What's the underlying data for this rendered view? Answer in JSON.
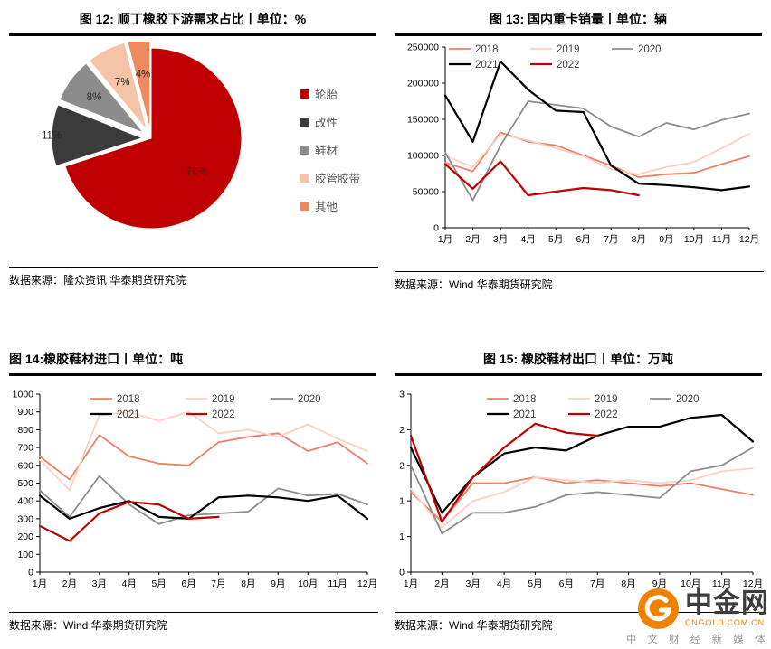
{
  "sources": {
    "fig12": "数据来源：隆众资讯 华泰期货研究院",
    "fig13": "数据来源：Wind 华泰期货研究院",
    "fig14": "数据来源：Wind 华泰期货研究院",
    "fig15": "数据来源：Wind 华泰期货研究院"
  },
  "watermark": {
    "brand": "中金网",
    "domain": "CNGOLD.COM.CN",
    "tagline": "中 文 财 经 新 媒 体",
    "brand_color": "#3c3c3c",
    "accent_color": "#ef8200"
  },
  "chart_data": [
    {
      "type": "pie",
      "title": "图 12: 顺丁橡胶下游需求占比丨单位：%",
      "labels": [
        "轮胎",
        "改性",
        "鞋材",
        "胶管胶带",
        "其他"
      ],
      "values": [
        70,
        11,
        8,
        7,
        4
      ],
      "data_labels": [
        "70%",
        "11%",
        "8%",
        "7%",
        "4%"
      ],
      "colors": [
        "#c00000",
        "#3b3b3b",
        "#8c8c8c",
        "#f5c3a8",
        "#ef8a5f"
      ],
      "legend_position": "right",
      "start_angle": 0,
      "direction": "clockwise"
    },
    {
      "type": "line",
      "title": "图 13: 国内重卡销量丨单位：辆",
      "categories": [
        "1月",
        "2月",
        "3月",
        "4月",
        "5月",
        "6月",
        "7月",
        "8月",
        "9月",
        "10月",
        "11月",
        "12月"
      ],
      "ylim": [
        0,
        250000
      ],
      "yticks": [
        0,
        50000,
        100000,
        150000,
        200000,
        250000
      ],
      "legend_position": "top",
      "series": [
        {
          "name": "2018",
          "color": "#ee8066",
          "values": [
            90000,
            78000,
            132000,
            119000,
            114000,
            100000,
            86000,
            70000,
            74000,
            76000,
            88000,
            99000
          ]
        },
        {
          "name": "2019",
          "color": "#fad1c0",
          "values": [
            100000,
            84000,
            129000,
            121000,
            110000,
            99000,
            81000,
            74000,
            84000,
            91000,
            110000,
            130000
          ]
        },
        {
          "name": "2020",
          "color": "#8c8c8c",
          "values": [
            104000,
            38000,
            114000,
            175000,
            170000,
            165000,
            140000,
            126000,
            145000,
            136000,
            149000,
            158000
          ]
        },
        {
          "name": "2021",
          "color": "#000000",
          "values": [
            183000,
            119000,
            230000,
            191000,
            162000,
            160000,
            86000,
            61000,
            59000,
            56000,
            52000,
            57000
          ]
        },
        {
          "name": "2022",
          "color": "#c00000",
          "values": [
            88000,
            54000,
            92000,
            45000,
            50000,
            55000,
            52000,
            45000,
            null,
            null,
            null,
            null
          ]
        }
      ]
    },
    {
      "type": "line",
      "title": "图 14:橡胶鞋材进口丨单位：吨",
      "categories": [
        "1月",
        "2月",
        "3月",
        "4月",
        "5月",
        "6月",
        "7月",
        "8月",
        "9月",
        "10月",
        "11月",
        "12月"
      ],
      "ylim": [
        0,
        1000
      ],
      "yticks": [
        0,
        100,
        200,
        300,
        400,
        500,
        600,
        700,
        800,
        900,
        1000
      ],
      "legend_position": "top",
      "series": [
        {
          "name": "2018",
          "color": "#ee8066",
          "values": [
            650,
            520,
            770,
            650,
            610,
            600,
            730,
            760,
            780,
            680,
            730,
            610
          ]
        },
        {
          "name": "2019",
          "color": "#fad1c0",
          "values": [
            630,
            460,
            880,
            900,
            850,
            900,
            780,
            800,
            760,
            830,
            750,
            680
          ]
        },
        {
          "name": "2020",
          "color": "#8c8c8c",
          "values": [
            460,
            310,
            540,
            380,
            270,
            320,
            330,
            340,
            470,
            430,
            440,
            380
          ]
        },
        {
          "name": "2021",
          "color": "#000000",
          "values": [
            430,
            300,
            360,
            400,
            310,
            300,
            420,
            430,
            420,
            400,
            430,
            300
          ]
        },
        {
          "name": "2022",
          "color": "#c00000",
          "values": [
            260,
            175,
            330,
            395,
            380,
            300,
            310,
            null,
            null,
            null,
            null,
            null
          ]
        }
      ]
    },
    {
      "type": "line",
      "title": "图 15: 橡胶鞋材出口丨单位：万吨",
      "categories": [
        "1月",
        "2月",
        "3月",
        "4月",
        "5月",
        "6月",
        "7月",
        "8月",
        "9月",
        "10月",
        "11月",
        "12月"
      ],
      "ylim": [
        0,
        3
      ],
      "yticks": [
        0,
        0.6,
        1.2,
        1.8,
        2.4,
        3
      ],
      "ytick_labels": [
        "0",
        "1",
        "1",
        "2",
        "2",
        "3"
      ],
      "legend_position": "top",
      "series": [
        {
          "name": "2018",
          "color": "#ee8066",
          "values": [
            1.35,
            0.85,
            1.5,
            1.5,
            1.6,
            1.5,
            1.55,
            1.5,
            1.45,
            1.5,
            1.4,
            1.3
          ]
        },
        {
          "name": "2019",
          "color": "#fad1c0",
          "values": [
            1.4,
            0.75,
            1.2,
            1.35,
            1.6,
            1.55,
            1.5,
            1.55,
            1.5,
            1.55,
            1.7,
            1.75
          ]
        },
        {
          "name": "2020",
          "color": "#8c8c8c",
          "values": [
            1.8,
            0.65,
            1.0,
            1.0,
            1.1,
            1.3,
            1.35,
            1.3,
            1.25,
            1.7,
            1.8,
            2.1
          ]
        },
        {
          "name": "2021",
          "color": "#000000",
          "values": [
            2.1,
            1.0,
            1.6,
            2.0,
            2.1,
            2.05,
            2.3,
            2.45,
            2.45,
            2.6,
            2.65,
            2.2
          ]
        },
        {
          "name": "2022",
          "color": "#c00000",
          "values": [
            2.3,
            0.85,
            1.6,
            2.1,
            2.5,
            2.35,
            2.3,
            null,
            null,
            null,
            null,
            null
          ]
        }
      ]
    }
  ]
}
